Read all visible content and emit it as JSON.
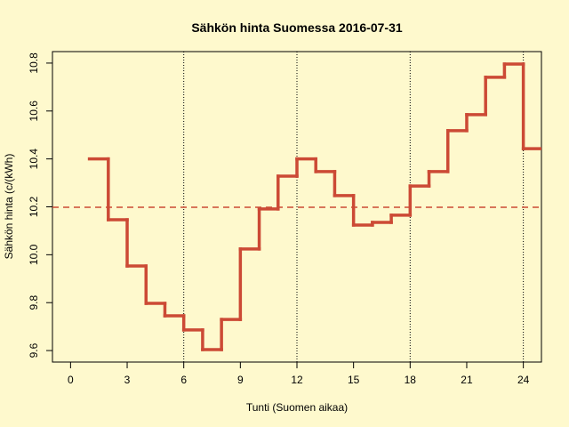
{
  "chart_data": {
    "type": "step",
    "title": "Sähkön hinta Suomessa 2016-07-31",
    "xlabel": "Tunti (Suomen aikaa)",
    "ylabel": "Sähkön hinta (c/(kWh)",
    "x": [
      1,
      2,
      3,
      4,
      5,
      6,
      7,
      8,
      9,
      10,
      11,
      12,
      13,
      14,
      15,
      16,
      17,
      18,
      19,
      20,
      21,
      22,
      23,
      24
    ],
    "values": [
      10.4,
      10.146,
      9.953,
      9.797,
      9.745,
      9.686,
      9.604,
      9.73,
      10.024,
      10.191,
      10.328,
      10.4,
      10.347,
      10.247,
      10.124,
      10.135,
      10.165,
      10.287,
      10.347,
      10.518,
      10.585,
      10.741,
      10.796,
      10.443
    ],
    "color": "#cc4a35",
    "xlim": [
      -0.96,
      24.96
    ],
    "ylim": [
      9.552,
      10.848
    ],
    "xticks": [
      0,
      3,
      6,
      9,
      12,
      15,
      18,
      21,
      24
    ],
    "yticks": [
      9.6,
      9.8,
      {
        "value": 10,
        "label": "10.0"
      },
      10.2,
      10.4,
      10.6,
      10.8
    ],
    "mean_line": 10.198,
    "vlines": [
      6,
      12,
      18,
      24
    ]
  }
}
